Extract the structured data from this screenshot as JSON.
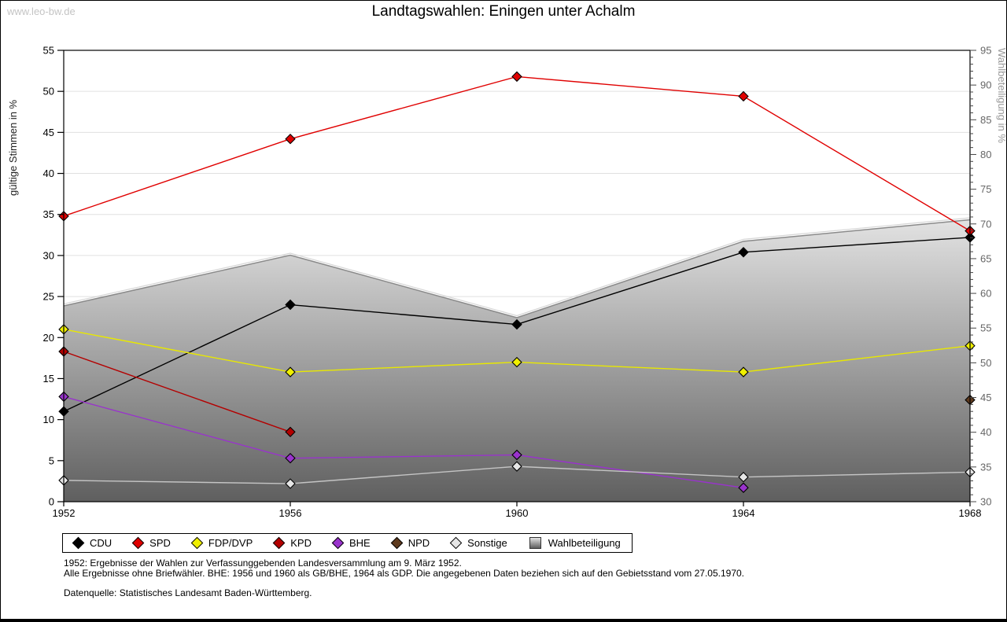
{
  "watermark": "www.leo-bw.de",
  "title": "Landtagswahlen: Eningen unter Achalm",
  "footnotes": {
    "line1": "1952: Ergebnisse der Wahlen zur Verfassunggebenden Landesversammlung am 9. März 1952.",
    "line2": "Alle Ergebnisse ohne Briefwähler. BHE: 1956 und 1960 als GB/BHE, 1964 als GDP. Die angegebenen Daten beziehen sich auf den Gebietsstand vom 27.05.1970.",
    "source": "Datenquelle: Statistisches Landesamt Baden-Württemberg."
  },
  "chart_data": {
    "type": "line",
    "x": [
      1952,
      1956,
      1960,
      1964,
      1968
    ],
    "left_axis": {
      "label": "gültige Stimmen in %",
      "min": 0,
      "max": 55,
      "tick_step": 5
    },
    "right_axis": {
      "label": "Wahlbeteiligung in %",
      "min": 30,
      "max": 95,
      "tick_step": 5,
      "minor_step": 1
    },
    "grid": true,
    "legend_position": "bottom",
    "series": [
      {
        "name": "CDU",
        "color": "#000000",
        "marker_fill": "#000000",
        "values": [
          11.0,
          24.0,
          21.6,
          30.4,
          32.2
        ]
      },
      {
        "name": "SPD",
        "color": "#e00000",
        "marker_fill": "#e00000",
        "values": [
          34.8,
          44.2,
          51.8,
          49.4,
          33.0
        ]
      },
      {
        "name": "FDP/DVP",
        "color": "#e8e800",
        "marker_fill": "#f0f000",
        "values": [
          21.0,
          15.8,
          17.0,
          15.8,
          19.0
        ]
      },
      {
        "name": "KPD",
        "color": "#b40000",
        "marker_fill": "#b40000",
        "values": [
          18.3,
          8.5,
          null,
          null,
          null
        ]
      },
      {
        "name": "BHE",
        "color": "#9933cc",
        "marker_fill": "#9933cc",
        "values": [
          12.8,
          5.3,
          5.7,
          1.7,
          null
        ]
      },
      {
        "name": "NPD",
        "color": "#5e3a1e",
        "marker_fill": "#5e3a1e",
        "values": [
          null,
          null,
          null,
          null,
          12.4
        ]
      },
      {
        "name": "Sonstige",
        "color": "#c4c4c4",
        "marker_fill": "#e6e6e6",
        "values": [
          2.6,
          2.2,
          4.3,
          3.0,
          3.6
        ]
      }
    ],
    "area_series": {
      "name": "Wahlbeteiligung",
      "axis": "right",
      "values": [
        58.2,
        65.5,
        56.5,
        67.5,
        70.6
      ],
      "fill_top": "#e2e2e2",
      "fill_bottom": "#5f5f5f",
      "stroke": "#8a8a8a",
      "highlight": "#d6d6d6"
    }
  }
}
